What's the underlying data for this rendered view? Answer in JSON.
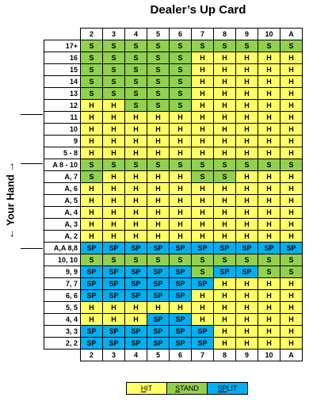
{
  "title": "Dealer’s Up Card",
  "side_label": "← Your Hand →",
  "dealer_cards": [
    "2",
    "3",
    "4",
    "5",
    "6",
    "7",
    "8",
    "9",
    "10",
    "A"
  ],
  "rows": [
    {
      "label": "17+",
      "cells": [
        "S",
        "S",
        "S",
        "S",
        "S",
        "S",
        "S",
        "S",
        "S",
        "S"
      ]
    },
    {
      "label": "16",
      "cells": [
        "S",
        "S",
        "S",
        "S",
        "S",
        "H",
        "H",
        "H",
        "H",
        "H"
      ]
    },
    {
      "label": "15",
      "cells": [
        "S",
        "S",
        "S",
        "S",
        "S",
        "H",
        "H",
        "H",
        "H",
        "H"
      ]
    },
    {
      "label": "14",
      "cells": [
        "S",
        "S",
        "S",
        "S",
        "S",
        "H",
        "H",
        "H",
        "H",
        "H"
      ]
    },
    {
      "label": "13",
      "cells": [
        "S",
        "S",
        "S",
        "S",
        "S",
        "H",
        "H",
        "H",
        "H",
        "H"
      ]
    },
    {
      "label": "12",
      "cells": [
        "H",
        "H",
        "S",
        "S",
        "S",
        "H",
        "H",
        "H",
        "H",
        "H"
      ]
    },
    {
      "label": "11",
      "cells": [
        "H",
        "H",
        "H",
        "H",
        "H",
        "H",
        "H",
        "H",
        "H",
        "H"
      ]
    },
    {
      "label": "10",
      "cells": [
        "H",
        "H",
        "H",
        "H",
        "H",
        "H",
        "H",
        "H",
        "H",
        "H"
      ]
    },
    {
      "label": "9",
      "cells": [
        "H",
        "H",
        "H",
        "H",
        "H",
        "H",
        "H",
        "H",
        "H",
        "H"
      ]
    },
    {
      "label": "5 - 8",
      "cells": [
        "H",
        "H",
        "H",
        "H",
        "H",
        "H",
        "H",
        "H",
        "H",
        "H"
      ]
    },
    {
      "label": "A 8 - 10",
      "cells": [
        "S",
        "S",
        "S",
        "S",
        "S",
        "S",
        "S",
        "S",
        "S",
        "S"
      ]
    },
    {
      "label": "A, 7",
      "cells": [
        "S",
        "H",
        "H",
        "H",
        "H",
        "S",
        "S",
        "H",
        "H",
        "H"
      ]
    },
    {
      "label": "A, 6",
      "cells": [
        "H",
        "H",
        "H",
        "H",
        "H",
        "H",
        "H",
        "H",
        "H",
        "H"
      ]
    },
    {
      "label": "A, 5",
      "cells": [
        "H",
        "H",
        "H",
        "H",
        "H",
        "H",
        "H",
        "H",
        "H",
        "H"
      ]
    },
    {
      "label": "A, 4",
      "cells": [
        "H",
        "H",
        "H",
        "H",
        "H",
        "H",
        "H",
        "H",
        "H",
        "H"
      ]
    },
    {
      "label": "A, 3",
      "cells": [
        "H",
        "H",
        "H",
        "H",
        "H",
        "H",
        "H",
        "H",
        "H",
        "H"
      ]
    },
    {
      "label": "A, 2",
      "cells": [
        "H",
        "H",
        "H",
        "H",
        "H",
        "H",
        "H",
        "H",
        "H",
        "H"
      ]
    },
    {
      "label": "A,A 8,8",
      "cells": [
        "SP",
        "SP",
        "SP",
        "SP",
        "SP",
        "SP",
        "SP",
        "SP",
        "SP",
        "SP"
      ]
    },
    {
      "label": "10, 10",
      "cells": [
        "S",
        "S",
        "S",
        "S",
        "S",
        "S",
        "S",
        "S",
        "S",
        "S"
      ]
    },
    {
      "label": "9, 9",
      "cells": [
        "SP",
        "SP",
        "SP",
        "SP",
        "SP",
        "S",
        "SP",
        "SP",
        "S",
        "S"
      ]
    },
    {
      "label": "7, 7",
      "cells": [
        "SP",
        "SP",
        "SP",
        "SP",
        "SP",
        "SP",
        "H",
        "H",
        "H",
        "H"
      ]
    },
    {
      "label": "6, 6",
      "cells": [
        "SP",
        "SP",
        "SP",
        "SP",
        "SP",
        "H",
        "H",
        "H",
        "H",
        "H"
      ]
    },
    {
      "label": "5, 5",
      "cells": [
        "H",
        "H",
        "H",
        "H",
        "H",
        "H",
        "H",
        "H",
        "H",
        "H"
      ]
    },
    {
      "label": "4, 4",
      "cells": [
        "H",
        "H",
        "H",
        "SP",
        "SP",
        "H",
        "H",
        "H",
        "H",
        "H"
      ]
    },
    {
      "label": "3, 3",
      "cells": [
        "SP",
        "SP",
        "SP",
        "SP",
        "SP",
        "SP",
        "H",
        "H",
        "H",
        "H"
      ]
    },
    {
      "label": "2, 2",
      "cells": [
        "SP",
        "SP",
        "SP",
        "SP",
        "SP",
        "SP",
        "H",
        "H",
        "H",
        "H"
      ]
    }
  ],
  "legend": [
    {
      "key": "H",
      "first": "H",
      "rest": "IT"
    },
    {
      "key": "S",
      "first": "S",
      "rest": "TAND"
    },
    {
      "key": "SP",
      "first": "SP",
      "rest": "LIT"
    }
  ],
  "colors": {
    "hit": "#ffff66",
    "stand": "#92d050",
    "split": "#00b0f0"
  }
}
